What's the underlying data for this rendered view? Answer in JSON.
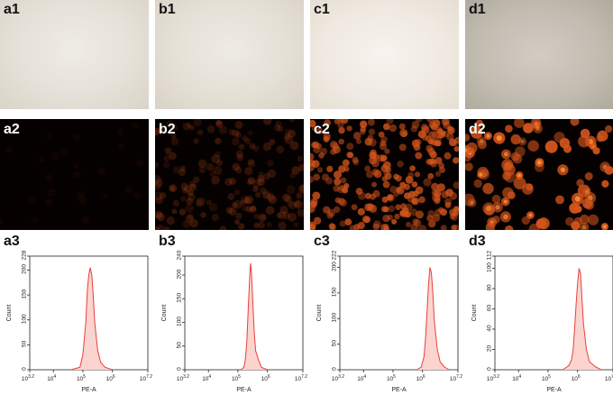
{
  "panels": {
    "a1": "a1",
    "b1": "b1",
    "c1": "c1",
    "d1": "d1",
    "a2": "a2",
    "b2": "b2",
    "c2": "c2",
    "d2": "d2",
    "a3": "a3",
    "b3": "b3",
    "c3": "c3",
    "d3": "d3"
  },
  "colors": {
    "histogram_line": "#e8403a",
    "histogram_fill": "#fbd4cf",
    "fluorescence": "#d2541c"
  },
  "fluorescence_intensity": {
    "a2": 0.0,
    "b2": 0.25,
    "c2": 0.85,
    "d2": 1.0
  },
  "chart_data": [
    {
      "panel": "a3",
      "type": "area",
      "ylabel": "Count",
      "xlabel": "PE-A",
      "x_scale": "log",
      "x_ticks": [
        {
          "b": "10",
          "e": "3.2"
        },
        {
          "b": "10",
          "e": "4"
        },
        {
          "b": "10",
          "e": "5"
        },
        {
          "b": "10",
          "e": "6"
        },
        {
          "b": "10",
          "e": "7.2"
        }
      ],
      "y_ticks": [
        "0",
        "50",
        "100",
        "150",
        "200",
        "228"
      ],
      "ylim": [
        0,
        228
      ],
      "series": [
        {
          "x": [
            4.6,
            4.9,
            5.0,
            5.1,
            5.15,
            5.2,
            5.25,
            5.3,
            5.35,
            5.4,
            5.5,
            5.6,
            5.75,
            6.0
          ],
          "y": [
            0,
            5,
            30,
            95,
            160,
            190,
            205,
            190,
            150,
            95,
            40,
            15,
            5,
            0
          ]
        }
      ]
    },
    {
      "panel": "b3",
      "type": "area",
      "ylabel": "Count",
      "xlabel": "PE-A",
      "x_scale": "log",
      "x_ticks": [
        {
          "b": "10",
          "e": "3.2"
        },
        {
          "b": "10",
          "e": "4"
        },
        {
          "b": "10",
          "e": "5"
        },
        {
          "b": "10",
          "e": "6"
        },
        {
          "b": "10",
          "e": "7.2"
        }
      ],
      "y_ticks": [
        "0",
        "50",
        "100",
        "150",
        "200",
        "240"
      ],
      "ylim": [
        0,
        240
      ],
      "series": [
        {
          "x": [
            5.1,
            5.2,
            5.25,
            5.3,
            5.35,
            5.4,
            5.43,
            5.46,
            5.5,
            5.55,
            5.6,
            5.7,
            5.8,
            6.0
          ],
          "y": [
            0,
            5,
            20,
            60,
            130,
            200,
            225,
            205,
            150,
            80,
            40,
            20,
            5,
            0
          ]
        }
      ]
    },
    {
      "panel": "c3",
      "type": "area",
      "ylabel": "Count",
      "xlabel": "PE-A",
      "x_scale": "log",
      "x_ticks": [
        {
          "b": "10",
          "e": "3.2"
        },
        {
          "b": "10",
          "e": "4"
        },
        {
          "b": "10",
          "e": "5"
        },
        {
          "b": "10",
          "e": "6"
        },
        {
          "b": "10",
          "e": "7.2"
        }
      ],
      "y_ticks": [
        "0",
        "50",
        "100",
        "150",
        "200",
        "222"
      ],
      "ylim": [
        0,
        222
      ],
      "series": [
        {
          "x": [
            5.8,
            5.95,
            6.05,
            6.1,
            6.15,
            6.2,
            6.25,
            6.3,
            6.35,
            6.4,
            6.5,
            6.6,
            6.75,
            6.9
          ],
          "y": [
            0,
            5,
            25,
            60,
            110,
            165,
            200,
            190,
            150,
            95,
            40,
            15,
            5,
            0
          ]
        }
      ]
    },
    {
      "panel": "d3",
      "type": "area",
      "ylabel": "Count",
      "xlabel": "PE-A",
      "x_scale": "log",
      "x_ticks": [
        {
          "b": "10",
          "e": "3.2"
        },
        {
          "b": "10",
          "e": "4"
        },
        {
          "b": "10",
          "e": "5"
        },
        {
          "b": "10",
          "e": "6"
        },
        {
          "b": "10",
          "e": "7.2"
        }
      ],
      "y_ticks": [
        "0",
        "20",
        "40",
        "60",
        "80",
        "100",
        "112"
      ],
      "ylim": [
        0,
        112
      ],
      "series": [
        {
          "x": [
            5.5,
            5.7,
            5.8,
            5.85,
            5.9,
            5.95,
            6.0,
            6.05,
            6.1,
            6.15,
            6.2,
            6.3,
            6.4,
            6.6,
            6.8
          ],
          "y": [
            0,
            4,
            10,
            20,
            40,
            65,
            85,
            100,
            95,
            70,
            45,
            20,
            8,
            3,
            0
          ]
        }
      ]
    }
  ]
}
